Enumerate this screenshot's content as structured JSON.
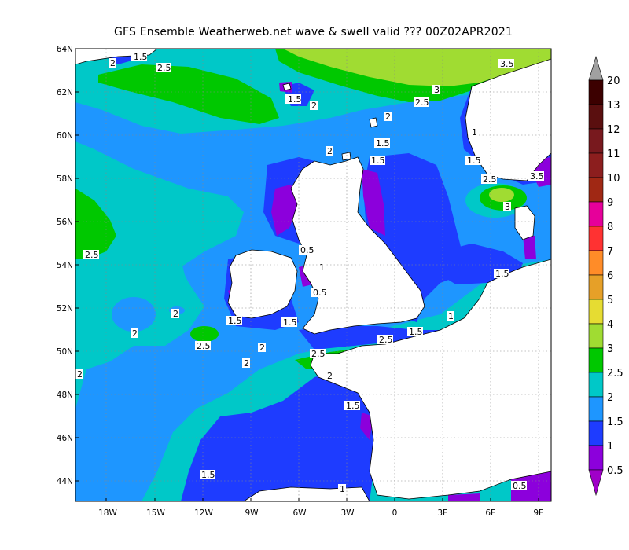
{
  "title": "GFS Ensemble Weatherweb.net wave & swell valid ??? 00Z02APR2021",
  "lat_labels": [
    "64N",
    "62N",
    "60N",
    "58N",
    "56N",
    "54N",
    "52N",
    "50N",
    "48N",
    "46N",
    "44N"
  ],
  "lon_labels": [
    "18W",
    "15W",
    "12W",
    "9W",
    "6W",
    "3W",
    "0",
    "3E",
    "6E",
    "9E"
  ],
  "legend": {
    "levels": [
      "20",
      "13",
      "12",
      "11",
      "10",
      "9",
      "8",
      "7",
      "6",
      "5",
      "4",
      "3",
      "2.5",
      "2",
      "1.5",
      "1",
      "0.5"
    ],
    "colors": {
      "top_arrow": "#a0a0a0",
      "c13_20": "#3c0000",
      "c12_13": "#5a0f0f",
      "c11_12": "#78191e",
      "c10_11": "#8c1e1e",
      "c9_10": "#a02814",
      "c8_9": "#e6009a",
      "c7_8": "#ff3232",
      "c6_7": "#ff8c28",
      "c5_6": "#e6a028",
      "c4_5": "#e6dc32",
      "c3_4": "#a0dc32",
      "c25_3": "#00c800",
      "c2_25": "#00c8c8",
      "c15_2": "#1e96ff",
      "c1_15": "#1e3cff",
      "c05_1": "#8c00dc",
      "bottom_arrow": "#a000c8"
    }
  },
  "contour_labels": [
    "1.5",
    "2",
    "2.5",
    "3",
    "3.5",
    "1",
    "0.5"
  ],
  "colors": {
    "land": "#ffffff",
    "sea_2_25": "#00c8c8",
    "sea_15_2": "#1e96ff",
    "sea_1_15": "#1e3cff",
    "sea_05_1": "#8c00dc",
    "sea_25_3": "#00c800",
    "sea_3_4": "#a0dc32"
  }
}
